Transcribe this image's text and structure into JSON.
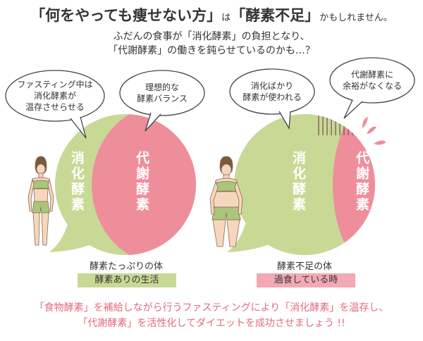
{
  "header": {
    "title_part1": "「何をやっても痩せない方」",
    "title_part2": "は",
    "title_part3": "「酵素不足」",
    "title_part4": "かもしれません。",
    "subtitle_line1": "ふだんの食事が「消化酵素」の負担となり、",
    "subtitle_line2": "「代謝酵素」の働きを鈍らせているのかも…？"
  },
  "left_panel": {
    "bubble_left_line1": "ファスティング中は",
    "bubble_left_line2": "消化酵素が",
    "bubble_left_line3": "温存させらせる",
    "bubble_right_line1": "理想的な",
    "bubble_right_line2": "酵素バランス",
    "green_label": "消化酵素",
    "pink_label": "代謝酵素",
    "caption": "酵素たっぷりの体",
    "pill": "酵素ありの生活"
  },
  "right_panel": {
    "bubble_left_line1": "消化ばかり",
    "bubble_left_line2": "酵素が使われる",
    "bubble_right_line1": "代謝酵素に",
    "bubble_right_line2": "余裕がなくなる",
    "green_label": "消化酵素",
    "pink_label": "代謝酵素",
    "caption": "酵素不足の体",
    "pill": "過食している時"
  },
  "footer": {
    "line1": "「食物酵素」を補給しながら行うファスティングにより「消化酵素」を温存し、",
    "line2": "「代謝酵素」を活性化してダイエットを成功させましょう !!"
  },
  "colors": {
    "green": "#c8d995",
    "pink": "#ef8e9b",
    "pill_pink": "#f3a9b4",
    "footer_text": "#e26c7d"
  }
}
